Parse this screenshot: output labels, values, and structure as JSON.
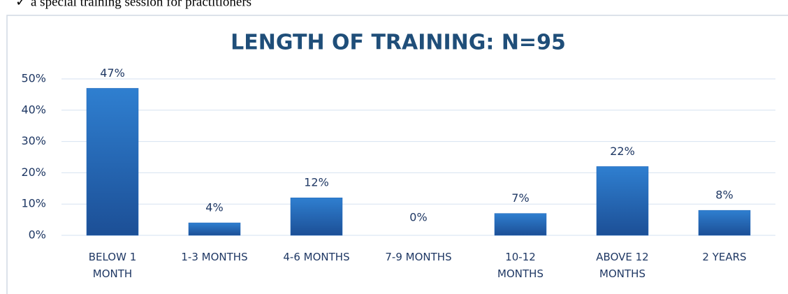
{
  "note_above": "a special training session for practitioners",
  "chart_data": {
    "type": "bar",
    "title": "LENGTH OF TRAINING: N=95",
    "categories": [
      "BELOW 1 MONTH",
      "1-3 MONTHS",
      "4-6 MONTHS",
      "7-9 MONTHS",
      "10-12 MONTHS",
      "ABOVE 12 MONTHS",
      "2 YEARS"
    ],
    "values": [
      47,
      4,
      12,
      0,
      7,
      22,
      8
    ],
    "value_labels": [
      "47%",
      "4%",
      "12%",
      "0%",
      "7%",
      "22%",
      "8%"
    ],
    "color": "#2166b8",
    "ylim": [
      0,
      50
    ],
    "yticks": [
      {
        "value": 0,
        "label": "0%"
      },
      {
        "value": 10,
        "label": "10%"
      },
      {
        "value": 20,
        "label": "20%"
      },
      {
        "value": 30,
        "label": "30%"
      },
      {
        "value": 40,
        "label": "40%"
      },
      {
        "value": 50,
        "label": "50%"
      }
    ],
    "grid": true
  }
}
